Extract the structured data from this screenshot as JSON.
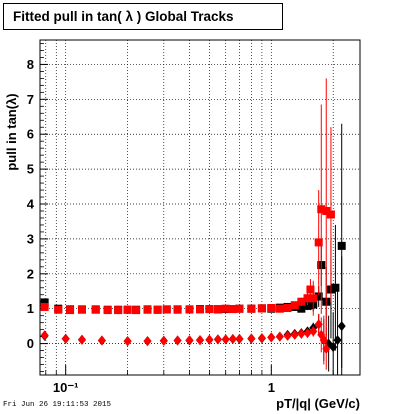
{
  "chart_data": {
    "type": "scatter",
    "title": "Fitted pull in tan( λ )  Global Tracks",
    "xlabel": "pT/|q| (GeV/c)",
    "ylabel": "pull in tan(λ)",
    "xscale": "log",
    "xlim": [
      0.075,
      2.7
    ],
    "ylim": [
      -0.9,
      8.7
    ],
    "grid": true,
    "y_ticks": [
      "0",
      "1",
      "2",
      "3",
      "4",
      "5",
      "6",
      "7",
      "8"
    ],
    "x_ticks": [
      "10⁻¹",
      "1"
    ],
    "colors": {
      "black": "#000000",
      "red": "#ff0000"
    },
    "series": [
      {
        "marker": "square",
        "color": "#000000",
        "x": [
          0.079,
          0.092,
          0.105,
          0.12,
          0.14,
          0.16,
          0.18,
          0.2,
          0.22,
          0.25,
          0.28,
          0.31,
          0.35,
          0.4,
          0.45,
          0.5,
          0.55,
          0.6,
          0.65,
          0.7,
          0.8,
          0.9,
          1.0,
          1.1,
          1.2,
          1.3,
          1.4,
          1.5,
          1.55,
          1.6,
          1.7,
          1.75,
          1.85,
          1.95,
          2.05,
          2.2
        ],
        "y": [
          1.18,
          1.0,
          0.98,
          0.98,
          0.98,
          0.97,
          0.97,
          0.97,
          0.97,
          0.98,
          0.97,
          0.98,
          0.98,
          0.98,
          0.99,
          0.99,
          0.98,
          0.99,
          0.99,
          1.0,
          1.0,
          1.01,
          1.0,
          1.03,
          1.05,
          1.05,
          1.0,
          1.08,
          1.1,
          1.12,
          1.35,
          2.25,
          1.2,
          1.55,
          1.6,
          2.8
        ],
        "err": [
          0.05,
          0.04,
          0.04,
          0.04,
          0.03,
          0.03,
          0.03,
          0.03,
          0.03,
          0.03,
          0.03,
          0.03,
          0.03,
          0.03,
          0.03,
          0.03,
          0.03,
          0.03,
          0.03,
          0.03,
          0.03,
          0.03,
          0.04,
          0.05,
          0.06,
          0.08,
          0.1,
          0.12,
          0.14,
          0.2,
          0.3,
          0.6,
          1.0,
          1.4,
          1.8,
          3.5
        ]
      },
      {
        "marker": "square",
        "color": "#ff0000",
        "x": [
          0.079,
          0.092,
          0.105,
          0.12,
          0.14,
          0.16,
          0.18,
          0.2,
          0.22,
          0.25,
          0.28,
          0.31,
          0.35,
          0.4,
          0.45,
          0.5,
          0.55,
          0.6,
          0.65,
          0.7,
          0.8,
          0.9,
          1.0,
          1.1,
          1.2,
          1.3,
          1.4,
          1.5,
          1.55,
          1.6,
          1.7,
          1.75,
          1.85,
          1.95
        ],
        "y": [
          1.05,
          0.97,
          0.96,
          0.97,
          0.97,
          0.96,
          0.96,
          0.97,
          0.96,
          0.97,
          0.97,
          0.98,
          0.97,
          0.98,
          0.98,
          0.99,
          0.99,
          1.0,
          0.99,
          1.0,
          1.0,
          1.01,
          1.02,
          1.0,
          1.02,
          1.1,
          1.2,
          1.3,
          1.55,
          1.3,
          2.9,
          3.85,
          3.8,
          3.7
        ],
        "err": [
          0.05,
          0.04,
          0.04,
          0.04,
          0.03,
          0.03,
          0.03,
          0.03,
          0.03,
          0.03,
          0.03,
          0.03,
          0.03,
          0.03,
          0.03,
          0.03,
          0.03,
          0.03,
          0.03,
          0.03,
          0.03,
          0.03,
          0.04,
          0.05,
          0.06,
          0.08,
          0.12,
          0.2,
          0.3,
          0.5,
          1.5,
          3.0,
          3.8,
          2.5
        ]
      },
      {
        "marker": "diamond",
        "color": "#000000",
        "x": [
          0.079,
          0.1,
          0.12,
          0.15,
          0.2,
          0.25,
          0.3,
          0.35,
          0.4,
          0.45,
          0.5,
          0.55,
          0.6,
          0.65,
          0.7,
          0.8,
          0.9,
          1.0,
          1.1,
          1.2,
          1.3,
          1.4,
          1.5,
          1.6,
          1.7,
          1.8,
          1.9,
          2.0,
          2.1,
          2.2
        ],
        "y": [
          0.22,
          0.14,
          0.11,
          0.09,
          0.07,
          0.07,
          0.08,
          0.09,
          0.09,
          0.1,
          0.11,
          0.12,
          0.12,
          0.13,
          0.13,
          0.14,
          0.15,
          0.18,
          0.2,
          0.25,
          0.28,
          0.3,
          0.35,
          0.45,
          0.55,
          0.1,
          0.0,
          -0.1,
          0.1,
          0.5
        ],
        "err": [
          0.03,
          0.03,
          0.03,
          0.03,
          0.03,
          0.03,
          0.03,
          0.03,
          0.03,
          0.03,
          0.03,
          0.03,
          0.03,
          0.03,
          0.03,
          0.03,
          0.03,
          0.03,
          0.04,
          0.05,
          0.06,
          0.08,
          0.1,
          0.15,
          0.3,
          0.6,
          0.8,
          1.0,
          1.5,
          2.0
        ]
      },
      {
        "marker": "diamond",
        "color": "#ff0000",
        "x": [
          0.079,
          0.1,
          0.12,
          0.15,
          0.2,
          0.25,
          0.3,
          0.35,
          0.4,
          0.45,
          0.5,
          0.55,
          0.6,
          0.65,
          0.7,
          0.8,
          0.9,
          1.0,
          1.1,
          1.2,
          1.3,
          1.4,
          1.5,
          1.6,
          1.7,
          1.75,
          1.8,
          1.85
        ],
        "y": [
          0.24,
          0.14,
          0.11,
          0.09,
          0.07,
          0.07,
          0.08,
          0.09,
          0.1,
          0.1,
          0.11,
          0.12,
          0.12,
          0.13,
          0.14,
          0.15,
          0.16,
          0.18,
          0.2,
          0.22,
          0.25,
          0.28,
          0.3,
          0.35,
          0.55,
          0.25,
          0.1,
          -0.15
        ],
        "err": [
          0.03,
          0.03,
          0.03,
          0.03,
          0.03,
          0.03,
          0.03,
          0.03,
          0.03,
          0.03,
          0.03,
          0.03,
          0.03,
          0.03,
          0.03,
          0.03,
          0.03,
          0.03,
          0.04,
          0.05,
          0.06,
          0.08,
          0.1,
          0.15,
          0.3,
          0.5,
          0.7,
          0.6
        ]
      }
    ]
  },
  "footer": "Fri Jun 26 19:11:53 2015"
}
